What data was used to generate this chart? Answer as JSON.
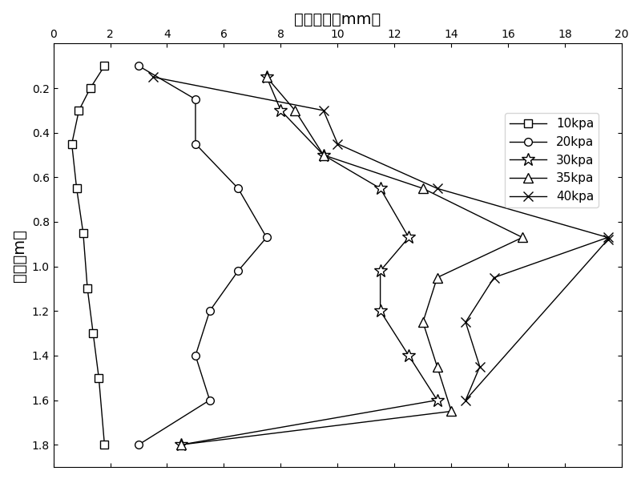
{
  "title": "侧向位移（mm）",
  "ylabel": "深度（m）",
  "xlim": [
    0,
    20
  ],
  "ylim": [
    1.9,
    0.0
  ],
  "xticks": [
    0,
    2,
    4,
    6,
    8,
    10,
    12,
    14,
    16,
    18,
    20
  ],
  "yticks": [
    0.2,
    0.4,
    0.6,
    0.8,
    1.0,
    1.2,
    1.4,
    1.6,
    1.8
  ],
  "series": [
    {
      "label": "10kpa",
      "marker": "s",
      "x": [
        1.8,
        1.3,
        0.9,
        0.65,
        0.82,
        1.05,
        1.2,
        1.4,
        1.6,
        1.8
      ],
      "y": [
        0.1,
        0.2,
        0.3,
        0.45,
        0.65,
        0.85,
        1.1,
        1.3,
        1.5,
        1.8
      ]
    },
    {
      "label": "20kpa",
      "marker": "o",
      "x": [
        3.0,
        5.0,
        5.0,
        6.5,
        7.5,
        6.5,
        5.5,
        5.0,
        5.5,
        3.0
      ],
      "y": [
        0.1,
        0.25,
        0.45,
        0.65,
        0.87,
        1.02,
        1.2,
        1.4,
        1.6,
        1.8
      ]
    },
    {
      "label": "30kpa",
      "marker": "*",
      "x": [
        7.5,
        8.0,
        9.5,
        11.5,
        12.5,
        11.5,
        11.5,
        12.5,
        13.5,
        4.5
      ],
      "y": [
        0.15,
        0.3,
        0.5,
        0.65,
        0.87,
        1.02,
        1.2,
        1.4,
        1.6,
        1.8
      ]
    },
    {
      "label": "35kpa",
      "marker": "^",
      "x": [
        7.5,
        8.5,
        9.5,
        13.0,
        16.5,
        13.5,
        13.0,
        13.5,
        14.0,
        4.5
      ],
      "y": [
        0.15,
        0.3,
        0.5,
        0.65,
        0.87,
        1.05,
        1.25,
        1.45,
        1.65,
        1.8
      ]
    },
    {
      "label": "40kpa",
      "marker": "x",
      "x": [
        3.5,
        9.5,
        10.0,
        13.5,
        19.5,
        15.5,
        14.5,
        15.0,
        14.5,
        19.5
      ],
      "y": [
        0.15,
        0.3,
        0.45,
        0.65,
        0.87,
        1.05,
        1.25,
        1.45,
        1.6,
        0.88
      ]
    }
  ]
}
